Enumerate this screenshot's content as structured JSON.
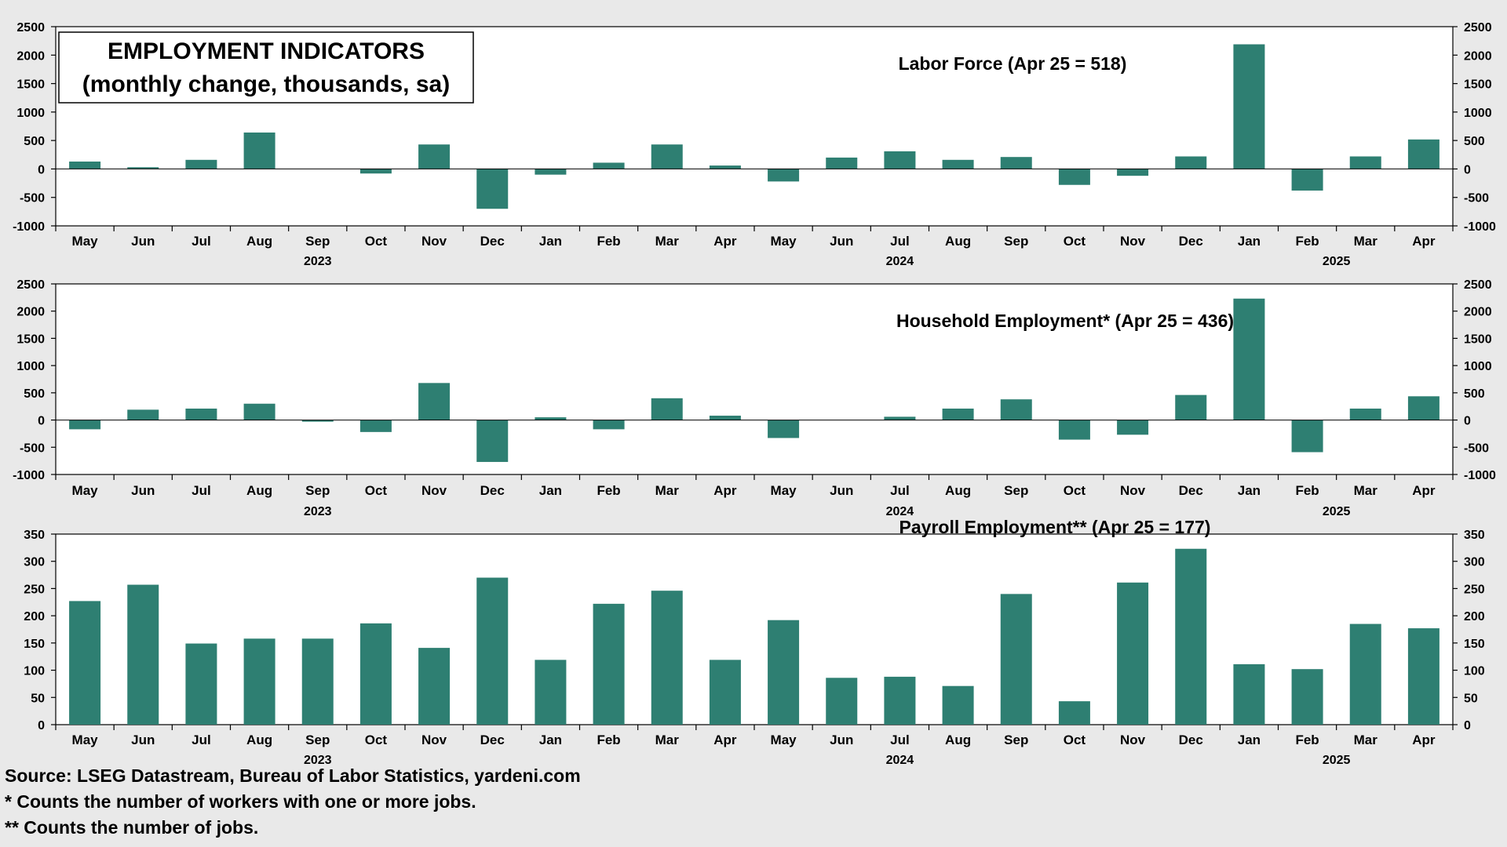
{
  "header_box": {
    "line1": "EMPLOYMENT INDICATORS",
    "line2": "(monthly change, thousands, sa)"
  },
  "months": [
    "May",
    "Jun",
    "Jul",
    "Aug",
    "Sep",
    "Oct",
    "Nov",
    "Dec",
    "Jan",
    "Feb",
    "Mar",
    "Apr",
    "May",
    "Jun",
    "Jul",
    "Aug",
    "Sep",
    "Oct",
    "Nov",
    "Dec",
    "Jan",
    "Feb",
    "Mar",
    "Apr"
  ],
  "years": [
    {
      "label": "2023",
      "month_index": 4
    },
    {
      "label": "2024",
      "month_index": 14
    },
    {
      "label": "2025",
      "month_index": 21.5
    }
  ],
  "footer": {
    "source": "Source: LSEG Datastream, Bureau of Labor Statistics, yardeni.com",
    "note1": "* Counts the number of workers with one or more jobs.",
    "note2": "** Counts the number of jobs."
  },
  "colors": {
    "bar": "#2e7f72",
    "background": "#e9e9e9",
    "plot": "#ffffff"
  },
  "chart_data": [
    {
      "type": "bar",
      "title": "Labor Force (Apr 25 = 518)",
      "xlabel": "",
      "ylabel": "",
      "ylim": [
        -1000,
        2500
      ],
      "yticks": [
        2500,
        2000,
        1500,
        1000,
        500,
        0,
        -500,
        -1000
      ],
      "categories": [
        "May 2023",
        "Jun 2023",
        "Jul 2023",
        "Aug 2023",
        "Sep 2023",
        "Oct 2023",
        "Nov 2023",
        "Dec 2023",
        "Jan 2024",
        "Feb 2024",
        "Mar 2024",
        "Apr 2024",
        "May 2024",
        "Jun 2024",
        "Jul 2024",
        "Aug 2024",
        "Sep 2024",
        "Oct 2024",
        "Nov 2024",
        "Dec 2024",
        "Jan 2025",
        "Feb 2025",
        "Mar 2025",
        "Apr 2025"
      ],
      "values": [
        130,
        30,
        160,
        640,
        0,
        -80,
        430,
        -700,
        -100,
        110,
        430,
        60,
        -220,
        200,
        310,
        160,
        210,
        -280,
        -120,
        220,
        2190,
        -380,
        220,
        518
      ],
      "grid": false
    },
    {
      "type": "bar",
      "title": "Household Employment* (Apr 25 = 436)",
      "xlabel": "",
      "ylabel": "",
      "ylim": [
        -1000,
        2500
      ],
      "yticks": [
        2500,
        2000,
        1500,
        1000,
        500,
        0,
        -500,
        -1000
      ],
      "categories": [
        "May 2023",
        "Jun 2023",
        "Jul 2023",
        "Aug 2023",
        "Sep 2023",
        "Oct 2023",
        "Nov 2023",
        "Dec 2023",
        "Jan 2024",
        "Feb 2024",
        "Mar 2024",
        "Apr 2024",
        "May 2024",
        "Jun 2024",
        "Jul 2024",
        "Aug 2024",
        "Sep 2024",
        "Oct 2024",
        "Nov 2024",
        "Dec 2024",
        "Jan 2025",
        "Feb 2025",
        "Mar 2025",
        "Apr 2025"
      ],
      "values": [
        -170,
        190,
        210,
        300,
        -30,
        -220,
        680,
        -770,
        50,
        -170,
        400,
        80,
        -330,
        0,
        60,
        210,
        380,
        -360,
        -270,
        460,
        2230,
        -590,
        210,
        436
      ],
      "grid": false
    },
    {
      "type": "bar",
      "title": "Payroll Employment** (Apr 25 = 177)",
      "xlabel": "",
      "ylabel": "",
      "ylim": [
        0,
        350
      ],
      "yticks": [
        350,
        300,
        250,
        200,
        150,
        100,
        50,
        0
      ],
      "categories": [
        "May 2023",
        "Jun 2023",
        "Jul 2023",
        "Aug 2023",
        "Sep 2023",
        "Oct 2023",
        "Nov 2023",
        "Dec 2023",
        "Jan 2024",
        "Feb 2024",
        "Mar 2024",
        "Apr 2024",
        "May 2024",
        "Jun 2024",
        "Jul 2024",
        "Aug 2024",
        "Sep 2024",
        "Oct 2024",
        "Nov 2024",
        "Dec 2024",
        "Jan 2025",
        "Feb 2025",
        "Mar 2025",
        "Apr 2025"
      ],
      "values": [
        227,
        257,
        149,
        158,
        158,
        186,
        141,
        270,
        119,
        222,
        246,
        119,
        192,
        86,
        88,
        71,
        240,
        43,
        261,
        323,
        111,
        102,
        185,
        177
      ],
      "grid": false
    }
  ]
}
